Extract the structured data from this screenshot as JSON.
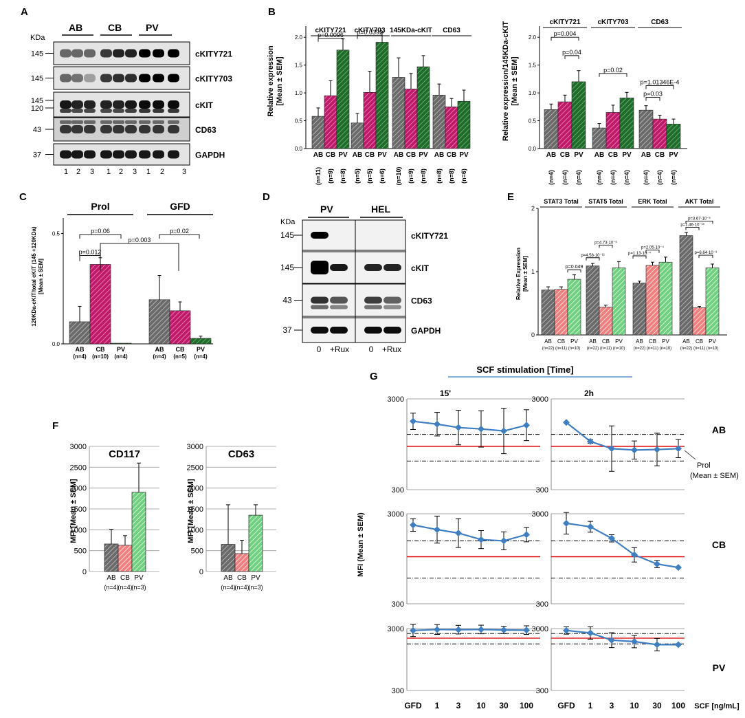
{
  "panel_letters": {
    "a": "A",
    "b": "B",
    "c": "C",
    "d": "D",
    "e": "E",
    "f": "F",
    "g": "G"
  },
  "colors": {
    "ab": "#555555",
    "cb": "#c0196a",
    "pv": "#1e6b2a",
    "cb_light": "#f08080",
    "pv_light": "#80d890",
    "line": "#3f7fc1",
    "prol": "#e00000"
  },
  "blotA": {
    "kda": "KDa",
    "groups": [
      "AB",
      "CB",
      "PV"
    ],
    "rows": [
      {
        "mw": "145",
        "name": "cKITY721"
      },
      {
        "mw": "145",
        "name": "cKITY703"
      },
      {
        "mw": "145",
        "mw2": "120",
        "name": "cKIT"
      },
      {
        "mw": "43",
        "name": "CD63"
      },
      {
        "mw": "37",
        "name": "GAPDH"
      }
    ],
    "lanes": [
      "1",
      "2",
      "3",
      "1",
      "2",
      "3",
      "1",
      "2",
      "3"
    ]
  },
  "blotD": {
    "kda": "KDa",
    "groups": [
      "PV",
      "HEL"
    ],
    "rows": [
      {
        "mw": "145",
        "name": "cKITY721"
      },
      {
        "mw": "145",
        "name": "cKIT"
      },
      {
        "mw": "43",
        "name": "CD63"
      },
      {
        "mw": "37",
        "name": "GAPDH"
      }
    ],
    "lanes": [
      "0",
      "+Rux",
      "0",
      "+Rux"
    ]
  },
  "chart_data": [
    {
      "id": "B1",
      "type": "bar",
      "ylabel": "Relative expression\n[Mean ± SEM]",
      "ylim": [
        0,
        2.2
      ],
      "yticks": [
        "0.0",
        "0.5",
        "1.0",
        "1.5",
        "2.0"
      ],
      "groups": [
        {
          "name": "cKITY721",
          "cats": [
            "AB",
            "CB",
            "PV"
          ],
          "values": [
            0.58,
            0.95,
            1.77
          ],
          "err": [
            0.15,
            0.27,
            0.2
          ],
          "ns": [
            "(n=11)",
            "(n=9)",
            "(n=8)"
          ]
        },
        {
          "name": "cKITY703",
          "cats": [
            "AB",
            "CB",
            "PV"
          ],
          "values": [
            0.46,
            1.01,
            1.91
          ],
          "err": [
            0.17,
            0.38,
            0.17
          ],
          "ns": [
            "(n=5)",
            "(n=5)",
            "(n=6)"
          ]
        },
        {
          "name": "145KDa-cKIT",
          "cats": [
            "AB",
            "CB",
            "PV"
          ],
          "values": [
            1.28,
            1.07,
            1.47
          ],
          "err": [
            0.35,
            0.28,
            0.2
          ],
          "ns": [
            "(n=10)",
            "(n=9)",
            "(n=8)"
          ]
        },
        {
          "name": "CD63",
          "cats": [
            "AB",
            "CB",
            "PV"
          ],
          "values": [
            0.96,
            0.75,
            0.85
          ],
          "err": [
            0.2,
            0.15,
            0.2
          ],
          "ns": [
            "(n=8)",
            "(n=8)",
            "(n=6)"
          ]
        }
      ],
      "annotations": [
        "p=0.0096",
        "p=0.0392"
      ]
    },
    {
      "id": "B2",
      "type": "bar",
      "ylabel": "Relative expression/145KDa-cKIT\n[Mean ± SEM]",
      "ylim": [
        0,
        2.2
      ],
      "yticks": [
        "0.0",
        "0.5",
        "1.0",
        "1.5",
        "2.0"
      ],
      "groups": [
        {
          "name": "cKITY721",
          "cats": [
            "AB",
            "CB",
            "PV"
          ],
          "values": [
            0.7,
            0.84,
            1.2
          ],
          "err": [
            0.1,
            0.12,
            0.2
          ],
          "ns": [
            "(n=4)",
            "(n=4)",
            "(n=4)"
          ]
        },
        {
          "name": "cKITY703",
          "cats": [
            "AB",
            "CB",
            "PV"
          ],
          "values": [
            0.37,
            0.65,
            0.91
          ],
          "err": [
            0.08,
            0.13,
            0.1
          ],
          "ns": [
            "(n=4)",
            "(n=4)",
            "(n=4)"
          ]
        },
        {
          "name": "CD63",
          "cats": [
            "AB",
            "CB",
            "PV"
          ],
          "values": [
            0.69,
            0.53,
            0.44
          ],
          "err": [
            0.08,
            0.07,
            0.09
          ],
          "ns": [
            "(n=4)",
            "(n=4)",
            "(n=4)"
          ]
        }
      ],
      "annotations": [
        "p=0.004",
        "p=0.04",
        "p=0.02",
        "p=1.01346E-4",
        "p=0.03"
      ]
    },
    {
      "id": "C",
      "type": "bar",
      "ylabel": "120KDa-cKIT/total cKIT (145 +120KDa)\n[Mean ± SEM]",
      "ylim": [
        0,
        0.57
      ],
      "yticks": [
        "0.0",
        "0.5"
      ],
      "groups": [
        {
          "name": "Prol",
          "cats": [
            "AB",
            "CB",
            "PV"
          ],
          "values": [
            0.1,
            0.36,
            0.003
          ],
          "err": [
            0.07,
            0.03,
            0
          ],
          "ns": [
            "(n=4)",
            "(n=10)",
            "(n=4)"
          ]
        },
        {
          "name": "GFD",
          "cats": [
            "AB",
            "CB",
            "PV"
          ],
          "values": [
            0.2,
            0.15,
            0.025
          ],
          "err": [
            0.11,
            0.04,
            0.01
          ],
          "ns": [
            "(n=4)",
            "(n=5)",
            "(n=4)"
          ]
        }
      ],
      "annotations": [
        "p=0.06",
        "p=0.012",
        "p=0.003",
        "p=0.02"
      ]
    },
    {
      "id": "E",
      "type": "bar",
      "ylabel": "Relative Expression\n[Mean ± SEM]",
      "ylim": [
        0,
        2
      ],
      "yticks": [
        "0",
        "1",
        "2"
      ],
      "groups": [
        {
          "name": "STAT3 Total",
          "cats": [
            "AB",
            "CB",
            "PV"
          ],
          "values": [
            0.71,
            0.72,
            0.88
          ],
          "err": [
            0.05,
            0.04,
            0.07
          ],
          "ns": [
            "(n=22)",
            "(n=11)",
            "(n=10)"
          ]
        },
        {
          "name": "STAT5 Total",
          "cats": [
            "AB",
            "CB",
            "PV"
          ],
          "values": [
            1.09,
            0.44,
            1.06
          ],
          "err": [
            0.04,
            0.03,
            0.1
          ],
          "ns": [
            "(n=22)",
            "(n=11)",
            "(n=10)"
          ]
        },
        {
          "name": "ERK Total",
          "cats": [
            "AB",
            "CB",
            "PV"
          ],
          "values": [
            0.82,
            1.1,
            1.15
          ],
          "err": [
            0.03,
            0.05,
            0.08
          ],
          "ns": [
            "(n=22)",
            "(n=11)",
            "(n=10)"
          ]
        },
        {
          "name": "AKT Total",
          "cats": [
            "AB",
            "CB",
            "PV"
          ],
          "values": [
            1.57,
            0.43,
            1.06
          ],
          "err": [
            0.05,
            0.02,
            0.06
          ],
          "ns": [
            "(n=22)",
            "(n=11)",
            "(n=10)"
          ]
        }
      ],
      "annotations": [
        "p=0.049",
        "p=4.73·10⁻⁶",
        "p=4.58·10⁻¹²",
        "p=2.05·10⁻⁴",
        "p=1.13·10⁻⁴",
        "p=3.67·10⁻⁵",
        "p=1.46·10⁻¹³",
        "p=6.64·10⁻⁹"
      ]
    },
    {
      "id": "F1",
      "type": "bar",
      "title": "CD117",
      "ylabel": "MFI  [Mean ± SEM]",
      "ylim": [
        0,
        3000
      ],
      "yticks": [
        "0",
        "500",
        "1000",
        "1500",
        "2000",
        "2500",
        "3000"
      ],
      "categories": [
        "AB",
        "CB",
        "PV"
      ],
      "values": [
        660,
        630,
        1900
      ],
      "err": [
        350,
        230,
        700
      ],
      "ns": [
        "(n=4)",
        "(n=4)",
        "(n=3)"
      ]
    },
    {
      "id": "F2",
      "type": "bar",
      "title": "CD63",
      "ylabel": "MFI  [Mean ± SEM]",
      "ylim": [
        0,
        3000
      ],
      "yticks": [
        "0",
        "500",
        "1000",
        "1500",
        "2000",
        "2500",
        "3000"
      ],
      "categories": [
        "AB",
        "CB",
        "PV"
      ],
      "values": [
        650,
        430,
        1350
      ],
      "err": [
        950,
        320,
        250
      ],
      "ns": [
        "(n=4)",
        "(n=4)",
        "(n=3)"
      ]
    },
    {
      "id": "G",
      "type": "line",
      "title": "SCF stimulation [Time]",
      "ylabel": "MFI (Mean ± SEM)",
      "xlabel": "SCF [ng/mL]",
      "yscale": "log",
      "ylim": [
        300,
        3000
      ],
      "yticks": [
        "300",
        "3000"
      ],
      "x": [
        "GFD",
        "1",
        "3",
        "10",
        "30",
        "100"
      ],
      "columns": [
        "15'",
        "2h"
      ],
      "legend": [
        "Prol",
        "(Mean ± SEM)"
      ],
      "rows": [
        {
          "name": "AB",
          "prol": 900,
          "prol_sd": [
            620,
            1220
          ],
          "series": [
            {
              "values": [
                1700,
                1580,
                1450,
                1400,
                1330,
                1540
              ],
              "err": [
                0.09,
                0.13,
                0.19,
                0.2,
                0.25,
                0.17
              ]
            },
            {
              "values": [
                1650,
                1020,
                850,
                820,
                830,
                850
              ],
              "err": [
                0,
                0.02,
                0.25,
                0.1,
                0.18,
                0.1
              ]
            }
          ]
        },
        {
          "name": "CB",
          "prol": 1000,
          "prol_sd": [
            580,
            1500
          ],
          "series": [
            {
              "values": [
                2250,
                2000,
                1830,
                1550,
                1500,
                1760
              ],
              "err": [
                0.07,
                0.15,
                0.16,
                0.1,
                0.1,
                0.08
              ]
            },
            {
              "values": [
                2350,
                2150,
                1600,
                1050,
                830,
                760
              ],
              "err": [
                0.12,
                0.06,
                0.04,
                0.08,
                0.04,
                0
              ]
            }
          ]
        },
        {
          "name": "PV",
          "prol": 2100,
          "prol_sd": [
            1700,
            2500
          ],
          "series": [
            {
              "values": [
                2800,
                2900,
                2880,
                2900,
                2850,
                2830
              ],
              "err": [
                0.1,
                0.08,
                0.07,
                0.07,
                0.06,
                0.07
              ]
            },
            {
              "values": [
                2800,
                2550,
                1950,
                1850,
                1650,
                1650
              ],
              "err": [
                0.06,
                0.1,
                0.12,
                0.1,
                0.1,
                0
              ]
            }
          ]
        }
      ]
    }
  ]
}
